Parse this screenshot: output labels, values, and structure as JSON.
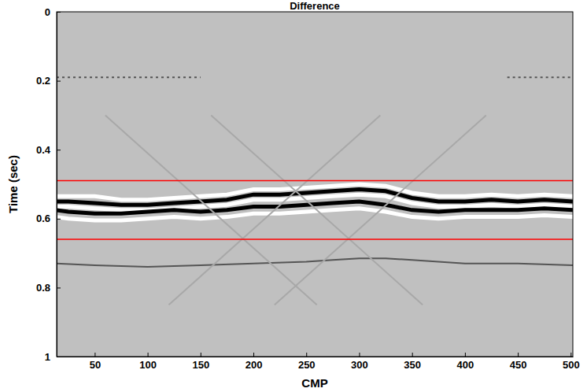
{
  "chart_data": {
    "type": "line",
    "title": "Difference",
    "x_label": "CMP",
    "y_label": "Time (sec)",
    "xlim": [
      14,
      502
    ],
    "ylim": [
      0,
      1
    ],
    "xticks": [
      50,
      100,
      150,
      200,
      250,
      300,
      350,
      400,
      450,
      500
    ],
    "yticks": [
      0,
      0.2,
      0.4,
      0.6,
      0.8,
      1
    ],
    "grid": false,
    "series": [
      {
        "color": "#ffffff",
        "line_style": "solid",
        "x": [
          14,
          25,
          50,
          75,
          100,
          125,
          150,
          175,
          200,
          225,
          250,
          275,
          300,
          325,
          350,
          375,
          400,
          425,
          450,
          475,
          502
        ],
        "values": [
          0.535,
          0.535,
          0.535,
          0.545,
          0.545,
          0.54,
          0.535,
          0.53,
          0.515,
          0.515,
          0.51,
          0.505,
          0.5,
          0.505,
          0.525,
          0.535,
          0.535,
          0.53,
          0.535,
          0.53,
          0.535
        ]
      },
      {
        "color": "#000000",
        "line_style": "solid",
        "x": [
          14,
          25,
          50,
          75,
          100,
          125,
          150,
          175,
          200,
          225,
          250,
          275,
          300,
          325,
          350,
          375,
          400,
          425,
          450,
          475,
          502
        ],
        "values": [
          0.55,
          0.55,
          0.555,
          0.56,
          0.56,
          0.555,
          0.55,
          0.545,
          0.53,
          0.53,
          0.525,
          0.52,
          0.515,
          0.52,
          0.54,
          0.55,
          0.55,
          0.545,
          0.55,
          0.545,
          0.55
        ]
      },
      {
        "color": "#ffffff",
        "line_style": "solid",
        "x": [
          14,
          25,
          50,
          75,
          100,
          125,
          150,
          175,
          200,
          225,
          250,
          275,
          300,
          325,
          350,
          375,
          400,
          425,
          450,
          475,
          502
        ],
        "values": [
          0.565,
          0.565,
          0.57,
          0.575,
          0.575,
          0.57,
          0.565,
          0.56,
          0.545,
          0.545,
          0.54,
          0.535,
          0.53,
          0.535,
          0.555,
          0.565,
          0.565,
          0.56,
          0.565,
          0.56,
          0.565
        ]
      },
      {
        "color": "#000000",
        "line_style": "solid",
        "x": [
          14,
          25,
          50,
          75,
          100,
          125,
          150,
          175,
          200,
          225,
          250,
          275,
          300,
          325,
          350,
          375,
          400,
          425,
          450,
          475,
          502
        ],
        "values": [
          0.575,
          0.58,
          0.585,
          0.585,
          0.58,
          0.575,
          0.58,
          0.575,
          0.565,
          0.565,
          0.56,
          0.555,
          0.55,
          0.56,
          0.575,
          0.58,
          0.575,
          0.575,
          0.575,
          0.57,
          0.575
        ]
      },
      {
        "color": "#ffffff",
        "line_style": "solid",
        "x": [
          14,
          25,
          50,
          75,
          100,
          125,
          150,
          175,
          200,
          225,
          250,
          275,
          300,
          325,
          350,
          375,
          400,
          425,
          450,
          475,
          502
        ],
        "values": [
          0.595,
          0.6,
          0.605,
          0.605,
          0.6,
          0.595,
          0.6,
          0.595,
          0.585,
          0.585,
          0.58,
          0.575,
          0.57,
          0.58,
          0.595,
          0.6,
          0.595,
          0.595,
          0.595,
          0.59,
          0.595
        ]
      },
      {
        "color": "#555555",
        "line_style": "solid",
        "x": [
          14,
          50,
          100,
          150,
          200,
          250,
          275,
          300,
          325,
          350,
          400,
          450,
          502
        ],
        "values": [
          0.73,
          0.735,
          0.74,
          0.735,
          0.73,
          0.725,
          0.72,
          0.715,
          0.715,
          0.72,
          0.73,
          0.73,
          0.735
        ]
      },
      {
        "color": "#555555",
        "line_style": "dashed",
        "x": [
          14,
          50,
          100,
          150,
          200,
          300,
          440,
          470,
          502
        ],
        "values": [
          0.19,
          0.19,
          0.19,
          0.19,
          null,
          null,
          0.19,
          0.19,
          0.19
        ]
      },
      {
        "color": "#a8a8a8",
        "line_style": "solid",
        "x": [
          120,
          320
        ],
        "values": [
          0.85,
          0.3
        ]
      },
      {
        "color": "#a8a8a8",
        "line_style": "solid",
        "x": [
          160,
          360
        ],
        "values": [
          0.3,
          0.85
        ]
      },
      {
        "color": "#a8a8a8",
        "line_style": "solid",
        "x": [
          220,
          420
        ],
        "values": [
          0.85,
          0.3
        ]
      },
      {
        "color": "#a8a8a8",
        "line_style": "solid",
        "x": [
          60,
          260
        ],
        "values": [
          0.3,
          0.85
        ]
      },
      {
        "color": "#ff0000",
        "line_style": "solid",
        "x": [
          14,
          502
        ],
        "values": [
          0.49,
          0.49
        ]
      },
      {
        "color": "#ff0000",
        "line_style": "solid",
        "x": [
          14,
          502
        ],
        "values": [
          0.66,
          0.66
        ]
      }
    ]
  }
}
